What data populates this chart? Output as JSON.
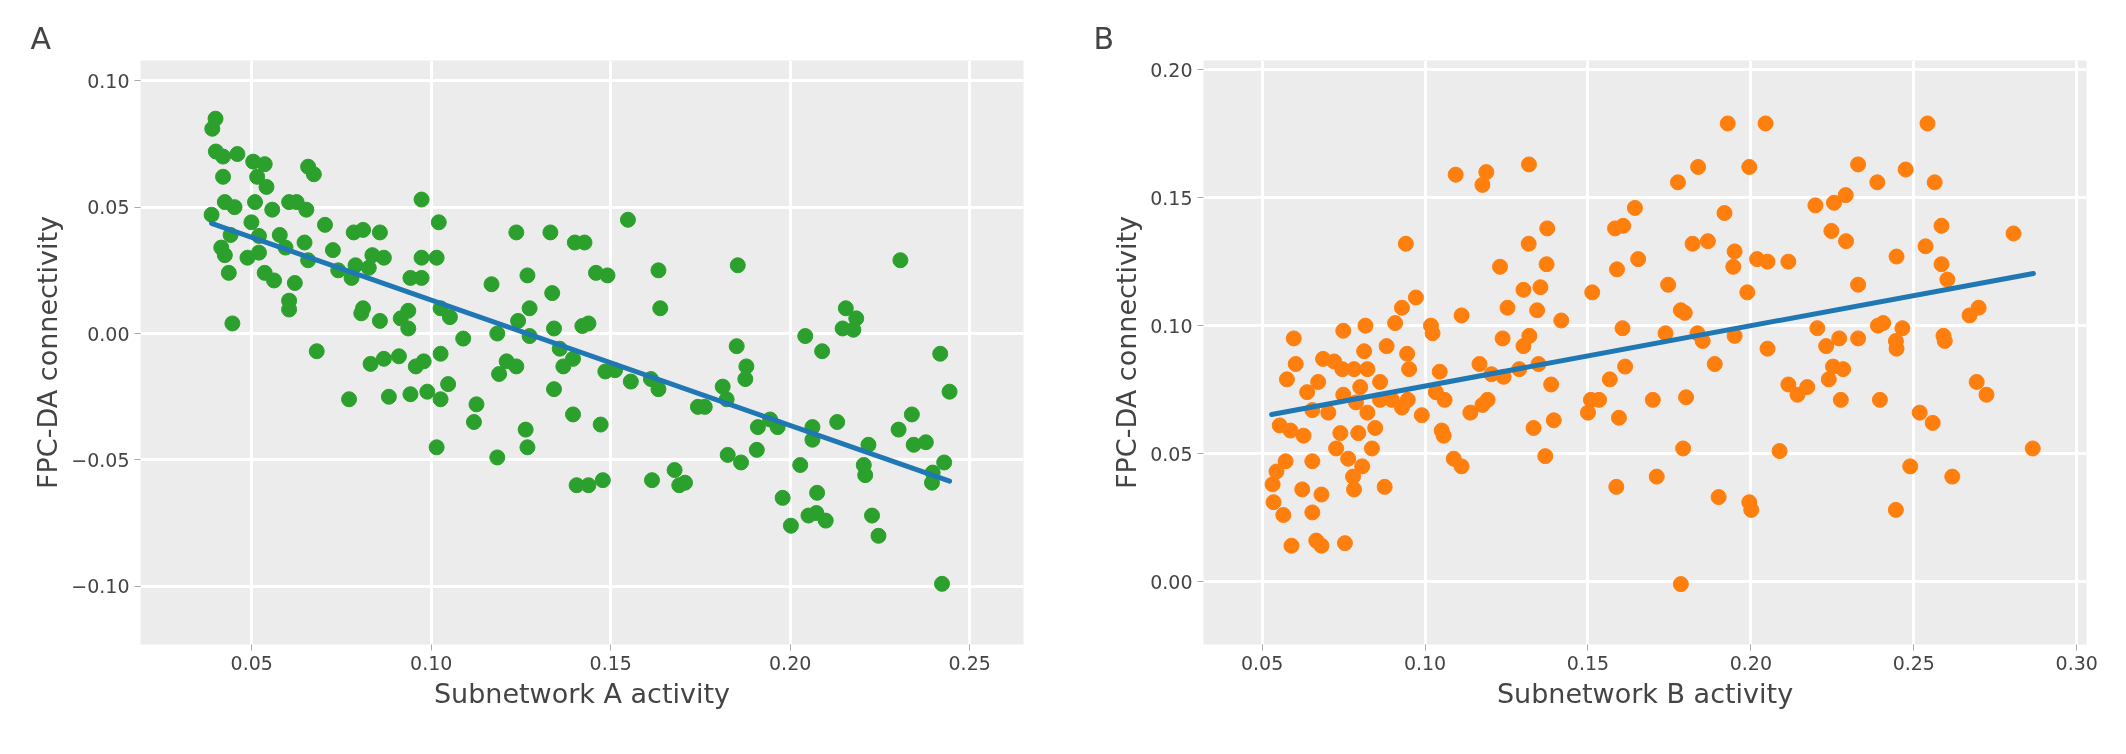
{
  "chart_data": [
    {
      "type": "scatter",
      "title": "A",
      "xlabel": "Subnetwork A activity",
      "ylabel": "FPC-DA connectivity",
      "grid": true,
      "xlim": [
        0.019,
        0.265
      ],
      "ylim": [
        -0.123,
        0.108
      ],
      "xticks": [
        {
          "value": 0.05,
          "label": "0.05"
        },
        {
          "value": 0.1,
          "label": "0.10"
        },
        {
          "value": 0.15,
          "label": "0.15"
        },
        {
          "value": 0.2,
          "label": "0.20"
        },
        {
          "value": 0.25,
          "label": "0.25"
        }
      ],
      "yticks": [
        {
          "value": -0.1,
          "label": "−0.10"
        },
        {
          "value": -0.05,
          "label": "−0.05"
        },
        {
          "value": 0,
          "label": "0.00"
        },
        {
          "value": 0.05,
          "label": "0.05"
        },
        {
          "value": 0.1,
          "label": "0.10"
        }
      ],
      "series": [
        {
          "type": "scatter",
          "marker": "circle",
          "color": "#2ca02c",
          "x": [
            0.0399,
            0.039,
            0.04,
            0.042,
            0.046,
            0.042,
            0.0504,
            0.0536,
            0.0515,
            0.0541,
            0.0425,
            0.0388,
            0.0452,
            0.0509,
            0.0557,
            0.0604,
            0.0625,
            0.0652,
            0.0657,
            0.0673,
            0.0499,
            0.0441,
            0.052,
            0.0578,
            0.0415,
            0.0425,
            0.0488,
            0.052,
            0.0594,
            0.0647,
            0.0657,
            0.0704,
            0.0726,
            0.0436,
            0.0536,
            0.0562,
            0.062,
            0.0604,
            0.0604,
            0.0446,
            0.0681,
            0.0784,
            0.081,
            0.0857,
            0.0789,
            0.0836,
            0.0868,
            0.0741,
            0.0778,
            0.0826,
            0.0973,
            0.1021,
            0.0973,
            0.1015,
            0.0942,
            0.0973,
            0.081,
            0.0805,
            0.0857,
            0.0936,
            0.0915,
            0.0936,
            0.1026,
            0.1052,
            0.1089,
            0.1168,
            0.1237,
            0.1268,
            0.1332,
            0.14,
            0.1337,
            0.1274,
            0.1242,
            0.1184,
            0.1274,
            0.1342,
            0.1358,
            0.1421,
            0.1395,
            0.1368,
            0.0831,
            0.0868,
            0.091,
            0.0957,
            0.0979,
            0.1026,
            0.121,
            0.1237,
            0.1189,
            0.0771,
            0.0882,
            0.0942,
            0.0989,
            0.1026,
            0.1047,
            0.1126,
            0.1119,
            0.1342,
            0.1395,
            0.1263,
            0.1268,
            0.1015,
            0.1184,
            0.1405,
            0.1548,
            0.1427,
            0.1459,
            0.1491,
            0.1633,
            0.1854,
            0.2307,
            0.1638,
            0.1438,
            0.2155,
            0.2184,
            0.2146,
            0.2176,
            0.2042,
            0.2089,
            0.1851,
            0.2418,
            0.2444,
            0.1485,
            0.1512,
            0.1556,
            0.1612,
            0.1633,
            0.1812,
            0.1823,
            0.1743,
            0.1762,
            0.1878,
            0.1875,
            0.1944,
            0.191,
            0.1965,
            0.2062,
            0.2062,
            0.2131,
            0.2339,
            0.2302,
            0.2344,
            0.2378,
            0.2218,
            0.2205,
            0.2209,
            0.2429,
            0.2397,
            0.2395,
            0.1472,
            0.1438,
            0.1478,
            0.1615,
            0.1678,
            0.1691,
            0.1707,
            0.1826,
            0.1863,
            0.1907,
            0.2028,
            0.1979,
            0.2075,
            0.2002,
            0.2051,
            0.2073,
            0.2099,
            0.2228,
            0.2246,
            0.2423
          ],
          "values": [
            0.085,
            0.081,
            0.072,
            0.07,
            0.071,
            0.062,
            0.068,
            0.067,
            0.062,
            0.058,
            0.052,
            0.047,
            0.05,
            0.052,
            0.049,
            0.052,
            0.052,
            0.049,
            0.066,
            0.063,
            0.044,
            0.039,
            0.0386,
            0.039,
            0.034,
            0.031,
            0.03,
            0.032,
            0.034,
            0.036,
            0.029,
            0.043,
            0.033,
            0.024,
            0.024,
            0.021,
            0.02,
            0.013,
            0.0095,
            0.004,
            -0.007,
            0.04,
            0.041,
            0.04,
            0.027,
            0.031,
            0.03,
            0.025,
            0.022,
            0.026,
            0.053,
            0.044,
            0.03,
            0.03,
            0.022,
            0.022,
            0.01,
            0.008,
            0.005,
            0.009,
            0.006,
            0.002,
            0.01,
            0.0065,
            -0.002,
            0.0195,
            0.04,
            0.023,
            0.04,
            0.036,
            0.016,
            0.01,
            0.005,
            0.0,
            -0.001,
            0.002,
            -0.006,
            0.003,
            -0.01,
            -0.013,
            -0.012,
            -0.01,
            -0.009,
            -0.013,
            -0.011,
            -0.008,
            -0.011,
            -0.013,
            -0.016,
            -0.026,
            -0.025,
            -0.024,
            -0.023,
            -0.026,
            -0.02,
            -0.028,
            -0.035,
            -0.022,
            -0.032,
            -0.038,
            -0.045,
            -0.045,
            -0.049,
            -0.06,
            0.045,
            0.036,
            0.024,
            0.023,
            0.025,
            0.027,
            0.029,
            0.01,
            0.004,
            0.01,
            0.006,
            0.002,
            0.0015,
            -0.001,
            -0.007,
            -0.005,
            -0.008,
            -0.023,
            -0.015,
            -0.0145,
            -0.019,
            -0.018,
            -0.022,
            -0.021,
            -0.026,
            -0.029,
            -0.029,
            -0.013,
            -0.018,
            -0.034,
            -0.037,
            -0.037,
            -0.037,
            -0.042,
            -0.035,
            -0.032,
            -0.038,
            -0.044,
            -0.043,
            -0.044,
            -0.052,
            -0.056,
            -0.051,
            -0.055,
            -0.059,
            -0.036,
            -0.06,
            -0.058,
            -0.058,
            -0.054,
            -0.06,
            -0.059,
            -0.048,
            -0.051,
            -0.046,
            -0.052,
            -0.065,
            -0.063,
            -0.076,
            -0.072,
            -0.071,
            -0.074,
            -0.072,
            -0.08,
            -0.099
          ]
        },
        {
          "type": "line",
          "color": "#1f77b4",
          "x": [
            0.0388,
            0.2444
          ],
          "values": [
            0.0436,
            -0.0584
          ]
        }
      ]
    },
    {
      "type": "scatter",
      "title": "B",
      "xlabel": "Subnetwork B activity",
      "ylabel": "FPC-DA connectivity",
      "grid": true,
      "xlim": [
        0.032,
        0.303
      ],
      "ylim": [
        -0.0246,
        0.2036
      ],
      "xticks": [
        {
          "value": 0.05,
          "label": "0.05"
        },
        {
          "value": 0.1,
          "label": "0.10"
        },
        {
          "value": 0.15,
          "label": "0.15"
        },
        {
          "value": 0.2,
          "label": "0.20"
        },
        {
          "value": 0.25,
          "label": "0.25"
        },
        {
          "value": 0.3,
          "label": "0.30"
        }
      ],
      "yticks": [
        {
          "value": 0,
          "label": "0.00"
        },
        {
          "value": 0.05,
          "label": "0.05"
        },
        {
          "value": 0.1,
          "label": "0.10"
        },
        {
          "value": 0.15,
          "label": "0.15"
        },
        {
          "value": 0.2,
          "label": "0.20"
        }
      ],
      "series": [
        {
          "type": "scatter",
          "marker": "circle",
          "color": "#ff7f0e",
          "x": [
            0.0532,
            0.0535,
            0.0565,
            0.0544,
            0.0572,
            0.059,
            0.0654,
            0.0623,
            0.0682,
            0.0654,
            0.0666,
            0.0682,
            0.0754,
            0.0782,
            0.0779,
            0.0807,
            0.0764,
            0.0727,
            0.074,
            0.0795,
            0.0837,
            0.0876,
            0.0554,
            0.0587,
            0.0627,
            0.0576,
            0.0603,
            0.0597,
            0.0638,
            0.0654,
            0.0672,
            0.0703,
            0.0687,
            0.0721,
            0.0749,
            0.0746,
            0.0782,
            0.0788,
            0.0801,
            0.0813,
            0.0823,
            0.0823,
            0.0847,
            0.0862,
            0.0862,
            0.0898,
            0.0929,
            0.0947,
            0.0749,
            0.0817,
            0.0882,
            0.0908,
            0.0929,
            0.0972,
            0.0941,
            0.0945,
            0.0951,
            0.099,
            0.1018,
            0.1023,
            0.1033,
            0.1045,
            0.106,
            0.1051,
            0.1057,
            0.1088,
            0.1112,
            0.1094,
            0.1176,
            0.1188,
            0.1319,
            0.1112,
            0.1139,
            0.1176,
            0.1192,
            0.1167,
            0.1204,
            0.1241,
            0.123,
            0.1253,
            0.1238,
            0.1289,
            0.1302,
            0.132,
            0.1348,
            0.1302,
            0.1354,
            0.1344,
            0.1373,
            0.1318,
            0.1375,
            0.1418,
            0.1387,
            0.1395,
            0.1333,
            0.1369,
            0.1513,
            0.1509,
            0.15,
            0.1534,
            0.1567,
            0.1614,
            0.1595,
            0.1587,
            0.1606,
            0.1589,
            0.1583,
            0.1608,
            0.1644,
            0.1654,
            0.1699,
            0.1711,
            0.1746,
            0.1738,
            0.1776,
            0.1785,
            0.1797,
            0.1801,
            0.1792,
            0.1785,
            0.1821,
            0.1838,
            0.1836,
            0.1852,
            0.1868,
            0.1889,
            0.1901,
            0.1919,
            0.1929,
            0.195,
            0.1946,
            0.195,
            0.1989,
            0.1995,
            0.1995,
            0.2001,
            0.2045,
            0.2019,
            0.2051,
            0.2051,
            0.2088,
            0.2115,
            0.2115,
            0.2143,
            0.2173,
            0.2198,
            0.2204,
            0.2231,
            0.2255,
            0.2247,
            0.2291,
            0.2292,
            0.2271,
            0.2239,
            0.2252,
            0.2283,
            0.2276,
            0.2329,
            0.2329,
            0.2329,
            0.2388,
            0.239,
            0.2406,
            0.2396,
            0.2445,
            0.2447,
            0.2445,
            0.2447,
            0.2465,
            0.2475,
            0.2489,
            0.2518,
            0.2542,
            0.2536,
            0.2558,
            0.2564,
            0.2585,
            0.2585,
            0.2603,
            0.2591,
            0.2595,
            0.2618,
            0.2671,
            0.2699,
            0.2693,
            0.2723,
            0.2806,
            0.2865
          ],
          "values": [
            0.038,
            0.031,
            0.026,
            0.043,
            0.047,
            0.014,
            0.027,
            0.036,
            0.034,
            0.047,
            0.016,
            0.014,
            0.015,
            0.036,
            0.041,
            0.045,
            0.048,
            0.052,
            0.058,
            0.058,
            0.052,
            0.037,
            0.061,
            0.059,
            0.057,
            0.079,
            0.085,
            0.095,
            0.074,
            0.067,
            0.078,
            0.066,
            0.087,
            0.086,
            0.073,
            0.083,
            0.083,
            0.07,
            0.076,
            0.09,
            0.083,
            0.066,
            0.06,
            0.078,
            0.071,
            0.071,
            0.068,
            0.071,
            0.098,
            0.1,
            0.092,
            0.101,
            0.107,
            0.111,
            0.132,
            0.089,
            0.083,
            0.065,
            0.1,
            0.097,
            0.074,
            0.082,
            0.071,
            0.059,
            0.057,
            0.048,
            0.045,
            0.159,
            0.155,
            0.16,
            0.163,
            0.104,
            0.066,
            0.069,
            0.071,
            0.085,
            0.081,
            0.08,
            0.123,
            0.107,
            0.095,
            0.083,
            0.092,
            0.096,
            0.085,
            0.114,
            0.115,
            0.106,
            0.124,
            0.132,
            0.138,
            0.102,
            0.077,
            0.063,
            0.06,
            0.049,
            0.113,
            0.071,
            0.066,
            0.071,
            0.079,
            0.084,
            0.064,
            0.037,
            0.099,
            0.122,
            0.138,
            0.139,
            0.146,
            0.126,
            0.071,
            0.041,
            0.116,
            0.097,
            0.156,
            0.106,
            0.105,
            0.072,
            0.052,
            -0.001,
            0.132,
            0.162,
            0.097,
            0.094,
            0.133,
            0.085,
            0.033,
            0.144,
            0.179,
            0.129,
            0.123,
            0.096,
            0.113,
            0.162,
            0.031,
            0.028,
            0.179,
            0.126,
            0.125,
            0.091,
            0.051,
            0.125,
            0.077,
            0.073,
            0.076,
            0.147,
            0.099,
            0.092,
            0.148,
            0.137,
            0.151,
            0.133,
            0.095,
            0.079,
            0.084,
            0.083,
            0.071,
            0.163,
            0.116,
            0.095,
            0.156,
            0.1,
            0.101,
            0.071,
            0.028,
            0.127,
            0.094,
            0.091,
            0.099,
            0.161,
            0.045,
            0.066,
            0.179,
            0.131,
            0.062,
            0.156,
            0.139,
            0.124,
            0.118,
            0.096,
            0.094,
            0.041,
            0.104,
            0.107,
            0.078,
            0.073,
            0.136,
            0.052
          ]
        },
        {
          "type": "line",
          "color": "#1f77b4",
          "x": [
            0.0529,
            0.2867
          ],
          "values": [
            0.0653,
            0.1204
          ]
        }
      ]
    }
  ]
}
